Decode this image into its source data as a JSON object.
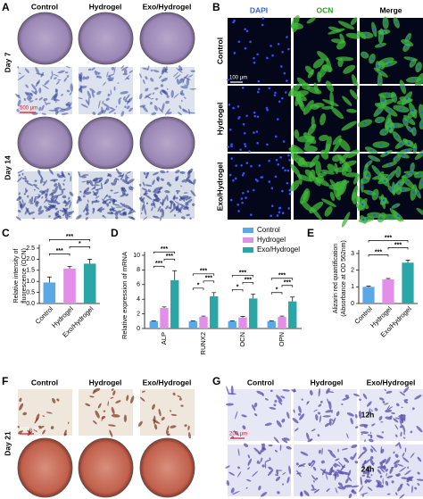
{
  "panel_labels": [
    "A",
    "B",
    "C",
    "D",
    "E",
    "F",
    "G"
  ],
  "panel_a": {
    "columns": [
      "Control",
      "Hydrogel",
      "Exo/Hydrogel"
    ],
    "rows": [
      "Day 7",
      "Day 14"
    ],
    "scale_bar": "500 μm"
  },
  "panel_b": {
    "columns": [
      "DAPI",
      "OCN",
      "Merge"
    ],
    "rows": [
      "Control",
      "Hydrogel",
      "Exo/Hydrogel"
    ],
    "scale_bar": "100 μm"
  },
  "panel_f": {
    "columns": [
      "Control",
      "Hydrogel",
      "Exo/Hydrogel"
    ],
    "row": "Day 21",
    "scale_bar": "500 μm"
  },
  "panel_g": {
    "columns": [
      "Control",
      "Hydrogel",
      "Exo/Hydrogel"
    ],
    "rows": [
      "12h",
      "24h"
    ],
    "scale_bar": "200 μm"
  },
  "chart_data": [
    {
      "type": "bar",
      "ylabel": [
        "Relative intensity of",
        "fluorescence (OCN)"
      ],
      "categories": [
        "Control",
        "Hydrogel",
        "Exo/Hydrogel"
      ],
      "values": [
        0.95,
        1.58,
        1.8
      ],
      "errors": [
        0.25,
        0.1,
        0.2
      ],
      "colors": [
        "#5aa9e6",
        "#e38ee8",
        "#2aa6a6"
      ],
      "ylim": [
        0,
        2.5
      ],
      "yticks": [
        {
          "value": 0,
          "label": "0.0"
        },
        0.5,
        {
          "value": 1,
          "label": "1.0"
        },
        1.5,
        {
          "value": 2,
          "label": "2.0"
        },
        2.5
      ],
      "significance": [
        "***",
        "***",
        "*"
      ]
    },
    {
      "type": "grouped_bar",
      "ylabel": "Relative expression of mRNA",
      "categories": [
        "ALP",
        "RUNX2",
        "OCN",
        "OPN"
      ],
      "series": [
        {
          "name": "Control",
          "color": "#5aa9e6",
          "values": [
            1,
            1,
            1,
            1
          ],
          "errors": [
            0.05,
            0.05,
            0.05,
            0.05
          ]
        },
        {
          "name": "Hydrogel",
          "color": "#e38ee8",
          "values": [
            2.8,
            1.6,
            1.5,
            1.6
          ],
          "errors": [
            0.15,
            0.1,
            0.15,
            0.1
          ]
        },
        {
          "name": "Exo/Hydrogel",
          "color": "#2aa6a6",
          "values": [
            6.6,
            4.4,
            4.1,
            3.7
          ],
          "errors": [
            1.3,
            0.5,
            0.6,
            0.6
          ]
        }
      ],
      "ylim": [
        0,
        10
      ],
      "yticks": [
        0,
        2,
        4,
        6,
        8,
        10
      ],
      "legend": "top-right",
      "significance": [
        [
          "***",
          "***",
          "***"
        ],
        [
          "*",
          "***",
          "***"
        ],
        [
          "*",
          "***",
          "***"
        ],
        [
          "*",
          "***",
          "***"
        ]
      ]
    },
    {
      "type": "bar",
      "ylabel": [
        "Alizarin red quantification",
        "(Absorbance at OD 562nm)"
      ],
      "categories": [
        "Control",
        "Hydrogel",
        "Exo/Hydrogel"
      ],
      "values": [
        1.0,
        1.45,
        2.45
      ],
      "errors": [
        0.05,
        0.05,
        0.15
      ],
      "colors": [
        "#5aa9e6",
        "#e38ee8",
        "#2aa6a6"
      ],
      "ylim": [
        0,
        3
      ],
      "yticks": [
        0,
        1,
        2,
        3
      ],
      "significance": [
        "***",
        "***",
        "***"
      ]
    }
  ]
}
